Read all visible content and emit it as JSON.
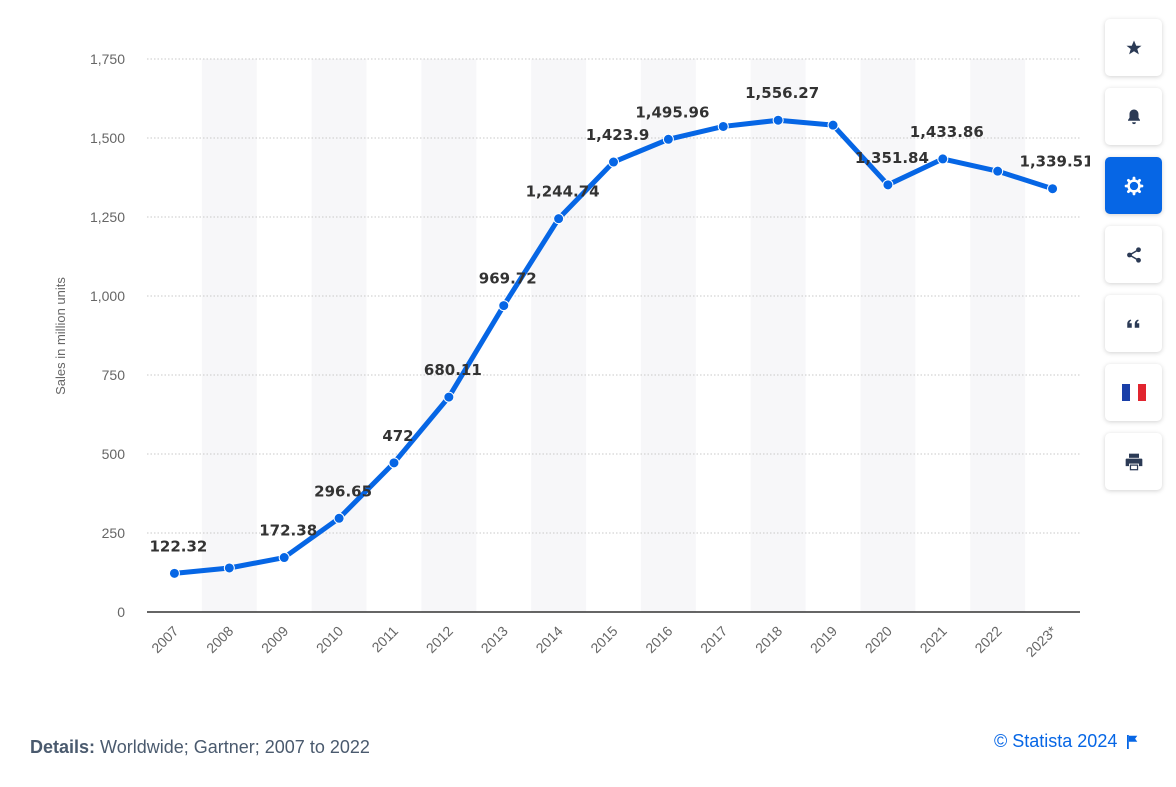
{
  "chart_data": {
    "type": "line",
    "categories": [
      "2007",
      "2008",
      "2009",
      "2010",
      "2011",
      "2012",
      "2013",
      "2014",
      "2015",
      "2016",
      "2017",
      "2018",
      "2019",
      "2020",
      "2021",
      "2022",
      "2023*"
    ],
    "series": [
      {
        "values": [
          122.32,
          139.29,
          172.38,
          296.65,
          472,
          680.11,
          969.72,
          1244.74,
          1423.9,
          1495.96,
          1536.54,
          1556.27,
          1540.66,
          1351.84,
          1433.86,
          1395,
          1339.51
        ],
        "labels": [
          "122.32",
          "",
          "172.38",
          "296.65",
          "472",
          "680.11",
          "969.72",
          "1,244.74",
          "1,423.9",
          "1,495.96",
          "",
          "1,556.27",
          "",
          "1,351.84",
          "1,433.86",
          "",
          "1,339.51"
        ]
      }
    ],
    "ylabel": "Sales in million units",
    "ylim": [
      0,
      1750
    ],
    "yticks": [
      0,
      250,
      500,
      750,
      1000,
      1250,
      1500,
      1750
    ],
    "ytick_labels": [
      "0",
      "250",
      "500",
      "750",
      "1,000",
      "1,250",
      "1,500",
      "1,750"
    ],
    "grid": true,
    "line_color": "#0666e5"
  },
  "details": {
    "label": "Details:",
    "text": "Worldwide; Gartner; 2007 to 2022"
  },
  "credit": "© Statista 2024",
  "toolbar": [
    {
      "name": "star-icon",
      "active": false
    },
    {
      "name": "bell-icon",
      "active": false
    },
    {
      "name": "gear-icon",
      "active": true
    },
    {
      "name": "share-icon",
      "active": false
    },
    {
      "name": "quote-icon",
      "active": false
    },
    {
      "name": "flag-fr-icon",
      "active": false
    },
    {
      "name": "print-icon",
      "active": false
    }
  ],
  "colors": {
    "accent": "#0666e5",
    "band": "#f7f7f9",
    "grid": "#c8c8c8"
  }
}
